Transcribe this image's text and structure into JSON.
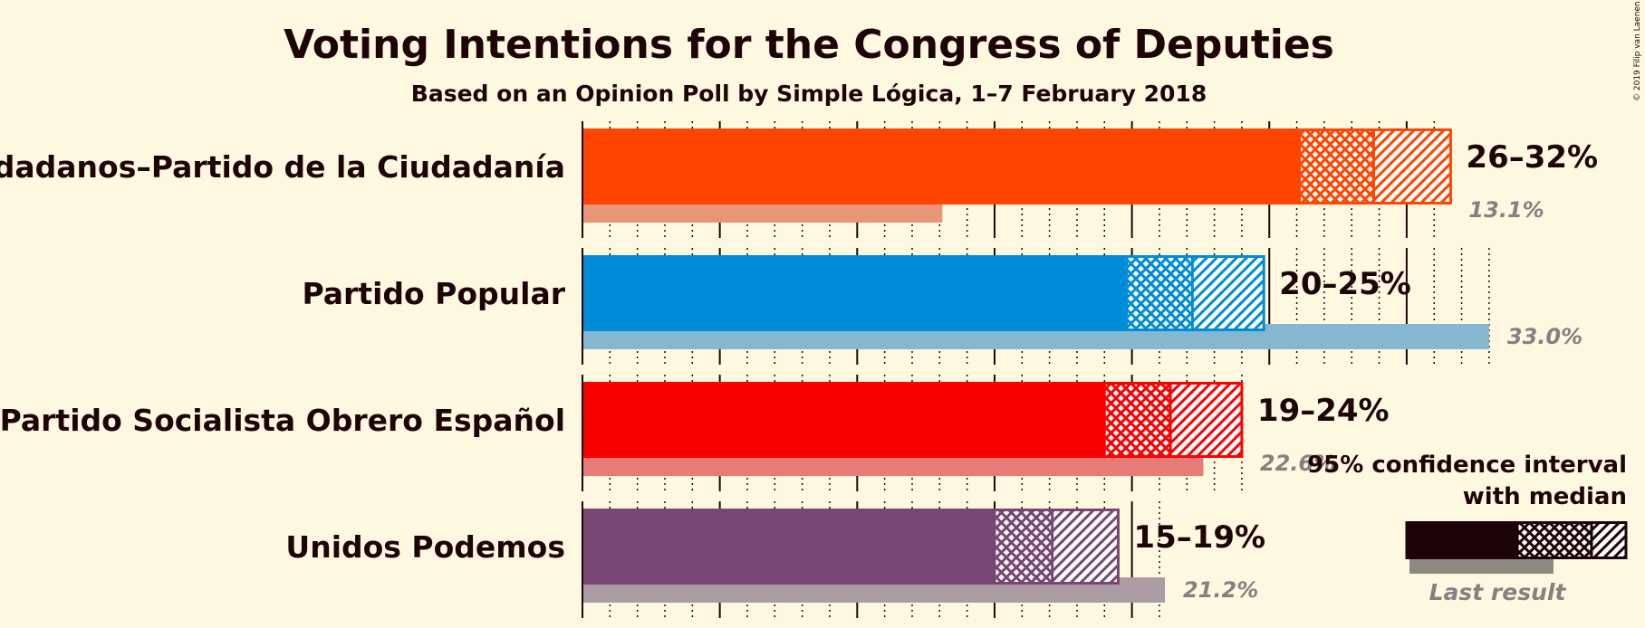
{
  "chart_data": {
    "type": "bar",
    "title": "Voting Intentions for the Congress of Deputies",
    "subtitle": "Based on an Opinion Poll by Simple Lógica, 1–7 February 2018",
    "credit": "© 2019 Filip van Laenen",
    "xlim": [
      0,
      35
    ],
    "parties": [
      {
        "name": "Ciudadanos–Partido de la Ciudadanía",
        "ci_low": 26.1,
        "median": 28.8,
        "ci_high": 31.6,
        "range_label": "26–32%",
        "last_result": 13.1,
        "last_label": "13.1%",
        "color": "#FF4500",
        "last_color": "#E8957A"
      },
      {
        "name": "Partido Popular",
        "ci_low": 19.8,
        "median": 22.2,
        "ci_high": 24.8,
        "range_label": "20–25%",
        "last_result": 33.0,
        "last_label": "33.0%",
        "color": "#008CD7",
        "last_color": "#85B7D0"
      },
      {
        "name": "Partido Socialista Obrero Español",
        "ci_low": 19.0,
        "median": 21.4,
        "ci_high": 24.0,
        "range_label": "19–24%",
        "last_result": 22.6,
        "last_label": "22.6%",
        "color": "#FA0000",
        "last_color": "#E87A77"
      },
      {
        "name": "Unidos Podemos",
        "ci_low": 15.0,
        "median": 17.1,
        "ci_high": 19.5,
        "range_label": "15–19%",
        "last_result": 21.2,
        "last_label": "21.2%",
        "color": "#784672",
        "last_color": "#AD9BA4"
      }
    ],
    "legend": {
      "title_line1": "95% confidence interval",
      "title_line2": "with median",
      "last_result_label": "Last result",
      "color": "#1E0407",
      "last_color": "#8A8A80"
    }
  }
}
